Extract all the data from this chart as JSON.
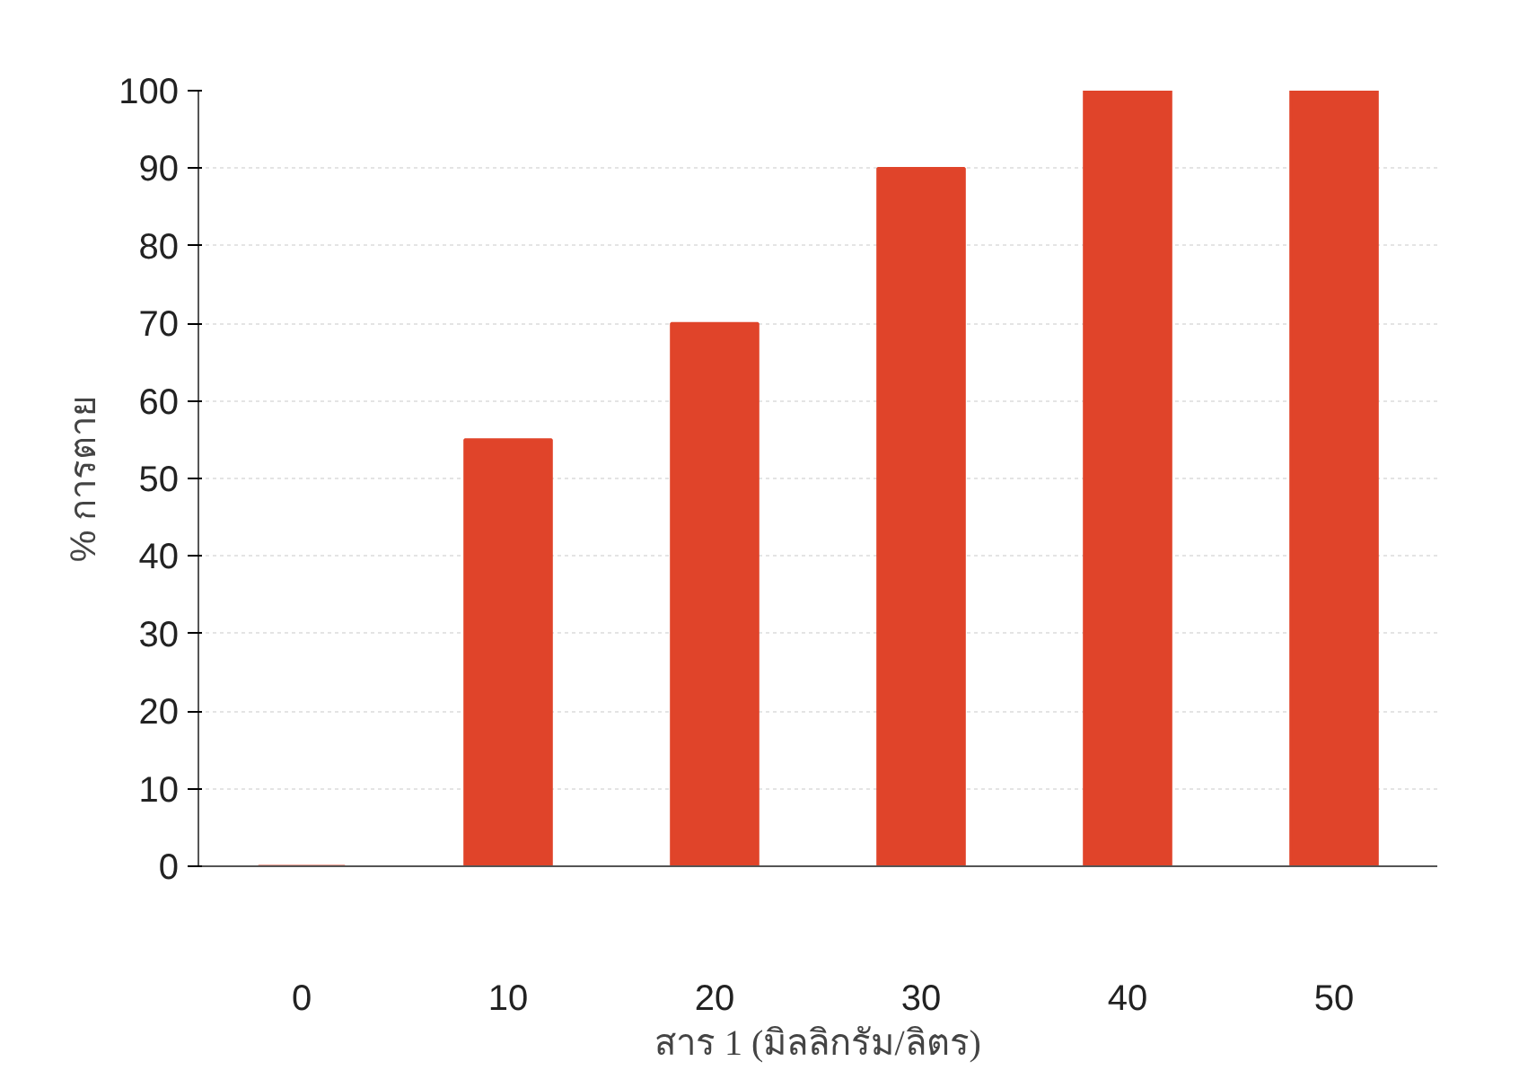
{
  "chart_data": {
    "type": "bar",
    "xlabel": "สาร 1 (มิลลิกรัม/ลิตร)",
    "ylabel": "% การตาย",
    "categories": [
      "0",
      "10",
      "20",
      "30",
      "40",
      "50"
    ],
    "values": [
      0,
      55,
      70,
      90,
      100,
      100
    ],
    "color": "#e0442a",
    "ylim": [
      0,
      100
    ],
    "yticks": [
      0,
      10,
      20,
      30,
      40,
      50,
      60,
      70,
      80,
      90,
      100
    ],
    "grid": "y"
  }
}
